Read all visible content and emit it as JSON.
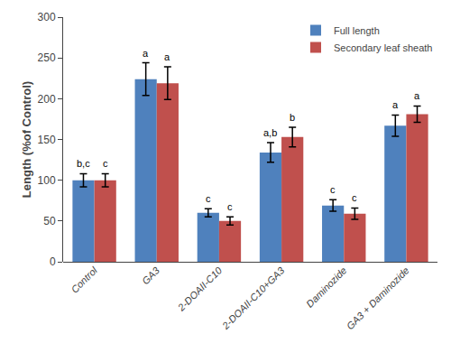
{
  "chart_data": {
    "type": "bar",
    "categories": [
      "Control",
      "GA3",
      "2-DOAII-C10",
      "2-DOAII-C10+GA3",
      "Daminozide",
      "GA3 + Daminozide"
    ],
    "series": [
      {
        "name": "Full length",
        "color": "#4F81BD",
        "values": [
          100,
          224,
          60,
          134,
          69,
          167
        ],
        "errors": [
          8,
          20,
          5,
          12,
          7,
          13
        ],
        "annotations": [
          "b,c",
          "a",
          "c",
          "a,b",
          "c",
          "a"
        ]
      },
      {
        "name": "Secondary leaf sheath",
        "color": "#C0504D",
        "values": [
          100,
          219,
          50,
          153,
          59,
          181
        ],
        "errors": [
          8,
          20,
          5,
          12,
          7,
          10
        ],
        "annotations": [
          "c",
          "a",
          "c",
          "b",
          "c",
          "a"
        ]
      }
    ],
    "ylabel": "Length (%of Control)",
    "ylim": [
      0,
      300
    ],
    "yticks": [
      0,
      50,
      100,
      150,
      200,
      250,
      300
    ],
    "legend": "upper right",
    "grid": false
  }
}
